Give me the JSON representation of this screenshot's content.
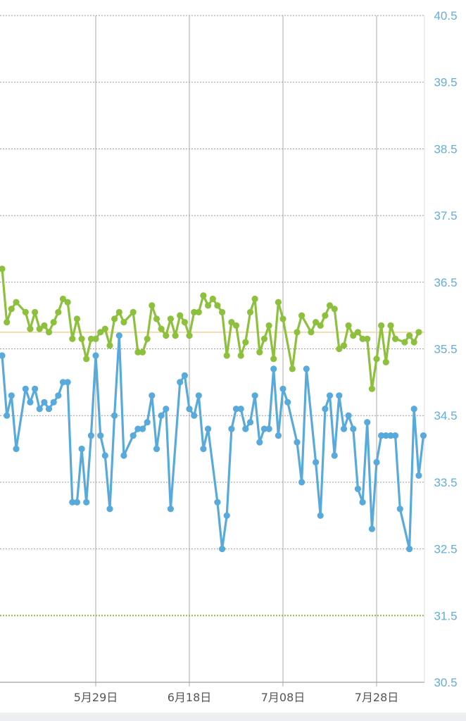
{
  "colors": {
    "background": "#ffffff",
    "grid_horizontal": "#9a9a9a",
    "grid_vertical": "#a8a8a8",
    "axis_tick_label": "#63aed9",
    "x_tick_label": "#555555",
    "series_green": "#8dc03c",
    "series_blue": "#57aadb",
    "reference_line_average": "#f0d39a",
    "reference_line_low": "#8dc03c"
  },
  "chart_data": {
    "type": "line",
    "title": "",
    "xlabel": "",
    "ylabel": "",
    "ylim": [
      30.5,
      40.5
    ],
    "y_ticks": [
      "30.5",
      "31.5",
      "32.5",
      "33.5",
      "34.5",
      "35.5",
      "36.5",
      "37.5",
      "38.5",
      "39.5",
      "40.5"
    ],
    "y_axis_side": "right",
    "x_tick_labels": [
      "5月29日",
      "6月18日",
      "7月08日",
      "7月28日"
    ],
    "x_tick_days": [
      20,
      40,
      60,
      80
    ],
    "x_range_days": [
      0,
      90
    ],
    "grid": true,
    "legend": "none",
    "reference_lines": [
      {
        "value": 35.75,
        "style": "solid",
        "color_key": "reference_line_average"
      },
      {
        "value": 31.5,
        "style": "dotted",
        "color_key": "reference_line_low"
      }
    ],
    "series": [
      {
        "color_key": "series_green",
        "points": [
          [
            0,
            36.7
          ],
          [
            1,
            35.9
          ],
          [
            2,
            36.1
          ],
          [
            3,
            36.2
          ],
          [
            5,
            36.05
          ],
          [
            6,
            35.8
          ],
          [
            7,
            36.05
          ],
          [
            8,
            35.8
          ],
          [
            9,
            35.85
          ],
          [
            10,
            35.75
          ],
          [
            11,
            35.9
          ],
          [
            12,
            36.05
          ],
          [
            13,
            36.25
          ],
          [
            14,
            36.2
          ],
          [
            15,
            35.65
          ],
          [
            16,
            35.95
          ],
          [
            17,
            35.65
          ],
          [
            18,
            35.35
          ],
          [
            19,
            35.65
          ],
          [
            20,
            35.65
          ],
          [
            21,
            35.75
          ],
          [
            22,
            35.8
          ],
          [
            23,
            35.55
          ],
          [
            24,
            35.95
          ],
          [
            25,
            36.05
          ],
          [
            26,
            35.9
          ],
          [
            28,
            36.05
          ],
          [
            29,
            35.45
          ],
          [
            30,
            35.45
          ],
          [
            31,
            35.65
          ],
          [
            32,
            36.15
          ],
          [
            33,
            35.95
          ],
          [
            34,
            35.8
          ],
          [
            35,
            35.7
          ],
          [
            36,
            35.95
          ],
          [
            37,
            35.7
          ],
          [
            38,
            36.0
          ],
          [
            39,
            35.9
          ],
          [
            40,
            35.7
          ],
          [
            41,
            36.05
          ],
          [
            42,
            36.05
          ],
          [
            43,
            36.3
          ],
          [
            44,
            36.15
          ],
          [
            45,
            36.25
          ],
          [
            46,
            36.15
          ],
          [
            47,
            36.05
          ],
          [
            48,
            35.4
          ],
          [
            49,
            35.9
          ],
          [
            50,
            35.85
          ],
          [
            51,
            35.4
          ],
          [
            52,
            35.6
          ],
          [
            53,
            36.05
          ],
          [
            54,
            36.25
          ],
          [
            55,
            35.45
          ],
          [
            56,
            35.65
          ],
          [
            57,
            35.85
          ],
          [
            58,
            35.35
          ],
          [
            59,
            36.2
          ],
          [
            60,
            35.95
          ],
          [
            62,
            35.2
          ],
          [
            63,
            35.75
          ],
          [
            64,
            36.0
          ],
          [
            66,
            35.75
          ],
          [
            67,
            35.9
          ],
          [
            68,
            35.85
          ],
          [
            69,
            36.0
          ],
          [
            70,
            36.15
          ],
          [
            71,
            36.1
          ],
          [
            72,
            35.5
          ],
          [
            73,
            35.55
          ],
          [
            74,
            35.85
          ],
          [
            75,
            35.7
          ],
          [
            76,
            35.75
          ],
          [
            77,
            35.65
          ],
          [
            78,
            35.65
          ],
          [
            79,
            34.9
          ],
          [
            80,
            35.35
          ],
          [
            81,
            35.85
          ],
          [
            82,
            35.3
          ],
          [
            83,
            35.85
          ],
          [
            84,
            35.65
          ],
          [
            86,
            35.6
          ],
          [
            87,
            35.7
          ],
          [
            88,
            35.6
          ],
          [
            89,
            35.75
          ]
        ]
      },
      {
        "color_key": "series_blue",
        "points": [
          [
            0,
            35.4
          ],
          [
            1,
            34.5
          ],
          [
            2,
            34.8
          ],
          [
            3,
            34.0
          ],
          [
            5,
            34.9
          ],
          [
            6,
            34.7
          ],
          [
            7,
            34.9
          ],
          [
            8,
            34.6
          ],
          [
            9,
            34.7
          ],
          [
            10,
            34.6
          ],
          [
            11,
            34.7
          ],
          [
            12,
            34.8
          ],
          [
            13,
            35.0
          ],
          [
            14,
            35.0
          ],
          [
            15,
            33.2
          ],
          [
            16,
            33.2
          ],
          [
            17,
            34.0
          ],
          [
            18,
            33.2
          ],
          [
            19,
            34.2
          ],
          [
            20,
            35.4
          ],
          [
            21,
            34.2
          ],
          [
            22,
            33.9
          ],
          [
            23,
            33.1
          ],
          [
            24,
            34.5
          ],
          [
            25,
            35.7
          ],
          [
            26,
            33.9
          ],
          [
            28,
            34.2
          ],
          [
            29,
            34.3
          ],
          [
            30,
            34.3
          ],
          [
            31,
            34.4
          ],
          [
            32,
            34.8
          ],
          [
            33,
            34.0
          ],
          [
            34,
            34.5
          ],
          [
            35,
            34.6
          ],
          [
            36,
            33.1
          ],
          [
            38,
            35.0
          ],
          [
            39,
            35.1
          ],
          [
            40,
            34.6
          ],
          [
            41,
            34.5
          ],
          [
            42,
            34.8
          ],
          [
            43,
            34.0
          ],
          [
            44,
            34.3
          ],
          [
            46,
            33.2
          ],
          [
            47,
            32.5
          ],
          [
            48,
            33.0
          ],
          [
            49,
            34.3
          ],
          [
            50,
            34.6
          ],
          [
            51,
            34.6
          ],
          [
            52,
            34.3
          ],
          [
            53,
            34.4
          ],
          [
            54,
            34.8
          ],
          [
            55,
            34.1
          ],
          [
            56,
            34.3
          ],
          [
            57,
            34.3
          ],
          [
            58,
            35.2
          ],
          [
            59,
            34.2
          ],
          [
            60,
            34.9
          ],
          [
            61,
            34.7
          ],
          [
            63,
            34.1
          ],
          [
            64,
            33.5
          ],
          [
            65,
            35.2
          ],
          [
            67,
            33.8
          ],
          [
            68,
            33.0
          ],
          [
            69,
            34.6
          ],
          [
            70,
            34.8
          ],
          [
            71,
            33.9
          ],
          [
            72,
            34.8
          ],
          [
            73,
            34.3
          ],
          [
            74,
            34.5
          ],
          [
            75,
            34.3
          ],
          [
            76,
            33.4
          ],
          [
            77,
            33.2
          ],
          [
            78,
            34.4
          ],
          [
            79,
            32.8
          ],
          [
            80,
            33.8
          ],
          [
            81,
            34.2
          ],
          [
            82,
            34.2
          ],
          [
            83,
            34.2
          ],
          [
            84,
            34.2
          ],
          [
            85,
            33.1
          ],
          [
            87,
            32.5
          ],
          [
            88,
            34.6
          ],
          [
            89,
            33.6
          ],
          [
            90,
            34.2
          ]
        ]
      }
    ]
  }
}
